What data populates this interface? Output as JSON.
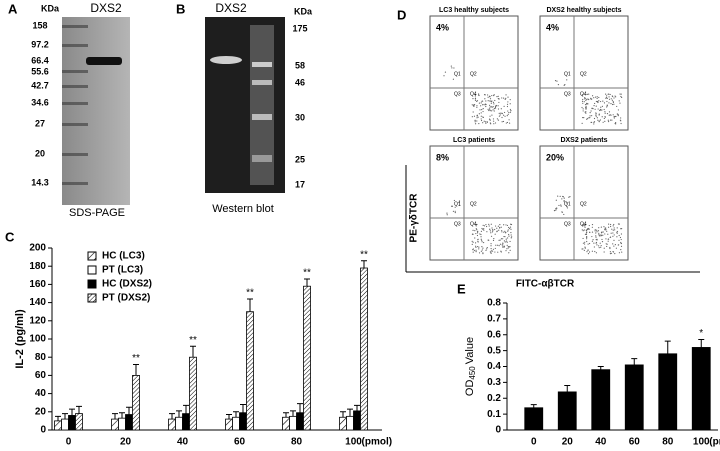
{
  "figure": {
    "panel_a": {
      "letter": "A",
      "unit": "KDa",
      "lane": "DXS2",
      "caption": "SDS-PAGE",
      "markers": [
        "158",
        "97.2",
        "66.4",
        "55.6",
        "42.7",
        "34.6",
        "27",
        "20",
        "14.3"
      ]
    },
    "panel_b": {
      "letter": "B",
      "unit": "KDa",
      "lane": "DXS2",
      "caption": "Western blot",
      "markers": [
        "175",
        "58",
        "46",
        "30",
        "25",
        "17"
      ]
    },
    "panel_d": {
      "letter": "D",
      "y_label": "PE-γδTCR",
      "x_label": "FITC-αβTCR",
      "plots": [
        {
          "title": "LC3 healthy subjects",
          "percent": "4%",
          "quadrants": [
            "Q1",
            "Q2",
            "Q3",
            "Q4"
          ]
        },
        {
          "title": "DXS2 healthy subjects",
          "percent": "4%",
          "quadrants": [
            "Q1",
            "Q2",
            "Q3",
            "Q4"
          ]
        },
        {
          "title": "LC3 patients",
          "percent": "8%",
          "quadrants": [
            "Q1",
            "Q2",
            "Q3",
            "Q4"
          ]
        },
        {
          "title": "DXS2 patients",
          "percent": "20%",
          "quadrants": [
            "Q1",
            "Q2",
            "Q3",
            "Q4"
          ]
        }
      ]
    }
  },
  "chart_data": [
    {
      "type": "bar",
      "letter": "C",
      "ylabel": "IL-2 (pg/ml)",
      "xlabel": "(pmol)",
      "categories": [
        "0",
        "20",
        "40",
        "60",
        "80",
        "100"
      ],
      "ylim": [
        0,
        200
      ],
      "yticks": [
        0,
        20,
        40,
        60,
        80,
        100,
        120,
        140,
        160,
        180,
        200
      ],
      "series": [
        {
          "name": "HC (LC3)",
          "color": "#000000",
          "pattern": "hatch-sparse",
          "values": [
            10,
            12,
            12,
            12,
            14,
            14
          ],
          "errors": [
            5,
            6,
            6,
            5,
            5,
            6
          ]
        },
        {
          "name": "PT (LC3)",
          "color": "#ffffff",
          "pattern": "solid",
          "values": [
            12,
            13,
            14,
            14,
            15,
            15
          ],
          "errors": [
            6,
            6,
            7,
            6,
            6,
            8
          ]
        },
        {
          "name": "HC (DXS2)",
          "color": "#000000",
          "pattern": "solid",
          "values": [
            16,
            17,
            18,
            19,
            19,
            21
          ],
          "errors": [
            7,
            8,
            9,
            9,
            10,
            6
          ]
        },
        {
          "name": "PT (DXS2)",
          "color": "#000000",
          "pattern": "hatch-dense",
          "values": [
            18,
            60,
            80,
            130,
            158,
            178
          ],
          "errors": [
            8,
            12,
            12,
            14,
            8,
            8
          ]
        }
      ],
      "significance": [
        null,
        "**",
        "**",
        "**",
        "**",
        "**"
      ]
    },
    {
      "type": "bar",
      "letter": "E",
      "ylabel_parts": [
        "OD",
        "450",
        "Value"
      ],
      "xlabel": "(pmol)",
      "categories": [
        "0",
        "20",
        "40",
        "60",
        "80",
        "100"
      ],
      "ylim": [
        0,
        0.8
      ],
      "yticks": [
        0,
        0.1,
        0.2,
        0.3,
        0.4,
        0.5,
        0.6,
        0.7,
        0.8
      ],
      "color": "#000000",
      "values": [
        0.14,
        0.24,
        0.38,
        0.41,
        0.48,
        0.52
      ],
      "errors": [
        0.02,
        0.04,
        0.02,
        0.04,
        0.08,
        0.05
      ],
      "significance": [
        null,
        null,
        null,
        null,
        null,
        "*"
      ]
    }
  ]
}
